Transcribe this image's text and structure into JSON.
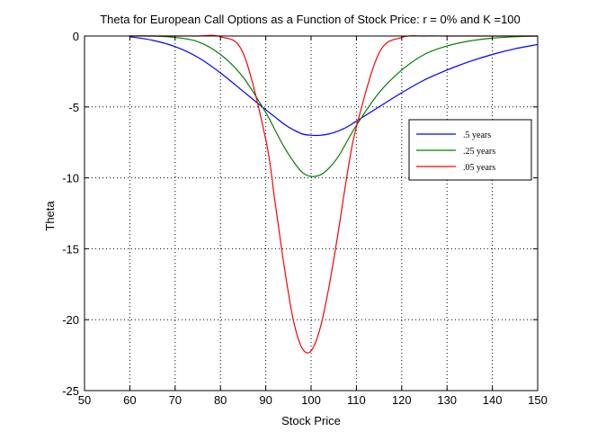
{
  "chart_data": {
    "type": "line",
    "title": "Theta for European Call Options as a Function of Stock Price: r = 0% and K =100",
    "xlabel": "Stock Price",
    "ylabel": "Theta",
    "xlim": [
      50,
      150
    ],
    "ylim": [
      -25,
      0
    ],
    "x_ticks": [
      50,
      60,
      70,
      80,
      90,
      100,
      110,
      120,
      130,
      140,
      150
    ],
    "y_ticks": [
      0,
      -5,
      -10,
      -15,
      -20,
      -25
    ],
    "x_tick_labels": [
      "50",
      "60",
      "70",
      "80",
      "90",
      "100",
      "110",
      "120",
      "130",
      "140",
      "150"
    ],
    "y_tick_labels": [
      "0",
      "-5",
      "-10",
      "-15",
      "-20",
      "-25"
    ],
    "grid": "dotted",
    "legend_position": "right",
    "x": [
      60,
      65,
      70,
      75,
      80,
      85,
      90,
      92,
      94,
      96,
      98,
      100,
      102,
      104,
      106,
      108,
      110,
      115,
      120,
      125,
      130,
      135,
      140,
      145,
      150
    ],
    "series": [
      {
        "name": ".5 years",
        "color": "#0000ff",
        "values": [
          -0.05,
          -0.3,
          -0.75,
          -1.5,
          -2.6,
          -3.9,
          -5.2,
          -5.7,
          -6.2,
          -6.6,
          -6.9,
          -7.0,
          -7.0,
          -6.9,
          -6.7,
          -6.4,
          -6.0,
          -5.0,
          -4.0,
          -3.1,
          -2.4,
          -1.8,
          -1.3,
          -0.9,
          -0.6
        ]
      },
      {
        "name": ".25 years",
        "color": "#008000",
        "values": [
          0,
          0,
          -0.1,
          -0.4,
          -1.3,
          -2.9,
          -5.4,
          -6.6,
          -7.8,
          -8.8,
          -9.6,
          -9.9,
          -9.8,
          -9.3,
          -8.5,
          -7.4,
          -6.3,
          -4.0,
          -2.4,
          -1.3,
          -0.7,
          -0.35,
          -0.15,
          -0.05,
          0
        ]
      },
      {
        "name": ".05 years",
        "color": "#ff0000",
        "values": [
          0,
          0,
          0,
          0,
          -0.05,
          -1.2,
          -7.3,
          -11.6,
          -16.1,
          -19.9,
          -22.0,
          -22.2,
          -20.6,
          -17.6,
          -13.8,
          -9.7,
          -6.4,
          -1.2,
          -0.1,
          0,
          0,
          0,
          0,
          0,
          0
        ]
      }
    ]
  }
}
